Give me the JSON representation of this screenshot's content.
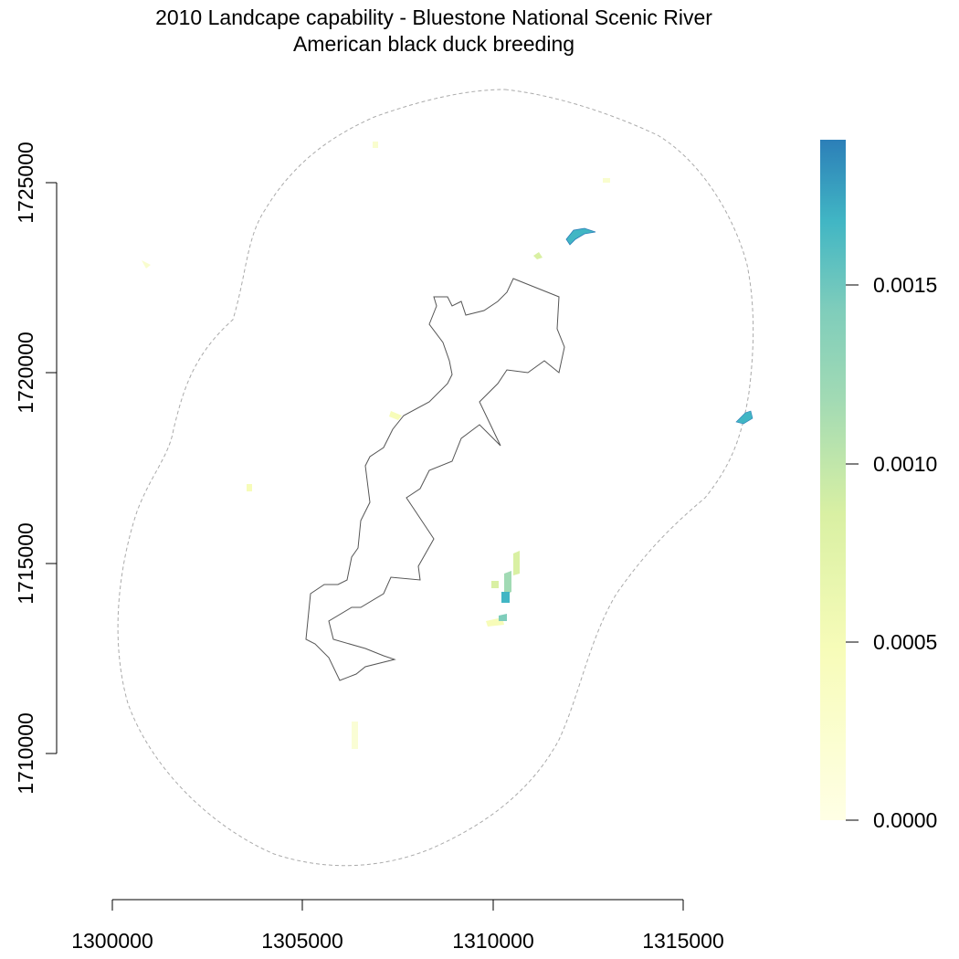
{
  "title": {
    "line1": "2010 Landcape capability - Bluestone National Scenic River",
    "line2": "American black duck breeding"
  },
  "x_axis": {
    "ticks": [
      "1300000",
      "1305000",
      "1310000",
      "1315000"
    ],
    "values": [
      1300000,
      1305000,
      1310000,
      1315000
    ]
  },
  "y_axis": {
    "ticks": [
      "1710000",
      "1715000",
      "1720000",
      "1725000"
    ],
    "values": [
      1710000,
      1715000,
      1720000,
      1725000
    ]
  },
  "legend": {
    "ticks": [
      "0.0000",
      "0.0005",
      "0.0010",
      "0.0015"
    ],
    "values": [
      0.0,
      0.0005,
      0.001,
      0.0015
    ],
    "min": 0.0,
    "max": 0.0019,
    "colors": [
      "#ffffe5",
      "#f7fcb9",
      "#d9f0a3",
      "#a1dab4",
      "#7fcdbb",
      "#41b6c4",
      "#2c7fb8"
    ]
  },
  "colors": {
    "boundary": "#555555",
    "buffer": "#aaaaaa"
  }
}
